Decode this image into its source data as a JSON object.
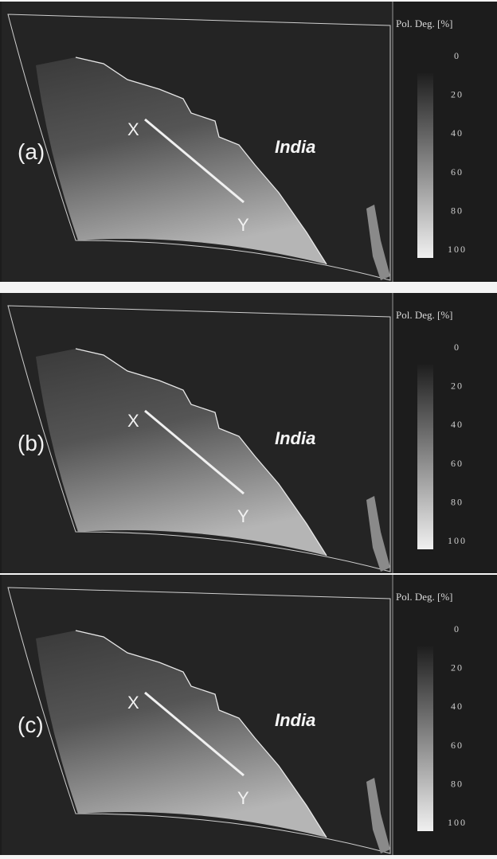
{
  "panels": [
    {
      "label": "(a)",
      "start": "X",
      "end": "Y",
      "region": "India",
      "colorbar": {
        "title": "Pol. Deg. [%]",
        "ticks": [
          "0",
          "20",
          "40",
          "60",
          "80",
          "100"
        ]
      }
    },
    {
      "label": "(b)",
      "start": "X",
      "end": "Y",
      "region": "India",
      "colorbar": {
        "title": "Pol. Deg. [%]",
        "ticks": [
          "0",
          "20",
          "40",
          "60",
          "80",
          "100"
        ]
      }
    },
    {
      "label": "(c)",
      "start": "X",
      "end": "Y",
      "region": "India",
      "colorbar": {
        "title": "Pol. Deg. [%]",
        "ticks": [
          "0",
          "20",
          "40",
          "60",
          "80",
          "100"
        ]
      }
    }
  ]
}
